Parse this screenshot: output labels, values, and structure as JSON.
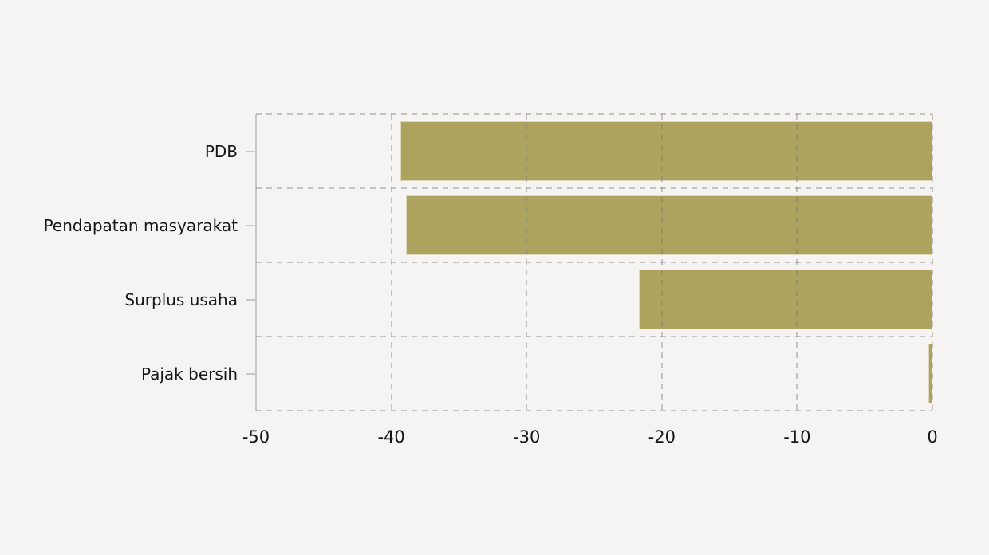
{
  "page": {
    "background_color": "#f5f4f2",
    "text_color": "#161616",
    "axis_line_color": "#c9c8c6",
    "gridline_style": "dashed"
  },
  "chart_data": {
    "type": "bar",
    "orientation": "horizontal",
    "title": "",
    "xlabel": "",
    "ylabel": "",
    "categories": [
      "PDB",
      "Pendapatan masyarakat",
      "Surplus usaha",
      "Pajak bersih"
    ],
    "values": [
      -39.3,
      -38.9,
      -21.7,
      -0.3
    ],
    "xlim": [
      -50,
      0
    ],
    "x_ticks": [
      -50,
      -40,
      -30,
      -20,
      -10,
      0
    ],
    "x_tick_labels": [
      "-50",
      "-40",
      "-30",
      "-20",
      "-10",
      "0"
    ],
    "bar_color": "#ada25e",
    "bar_outline_color": "#ded9bd",
    "grid": "on",
    "legend": "none"
  }
}
